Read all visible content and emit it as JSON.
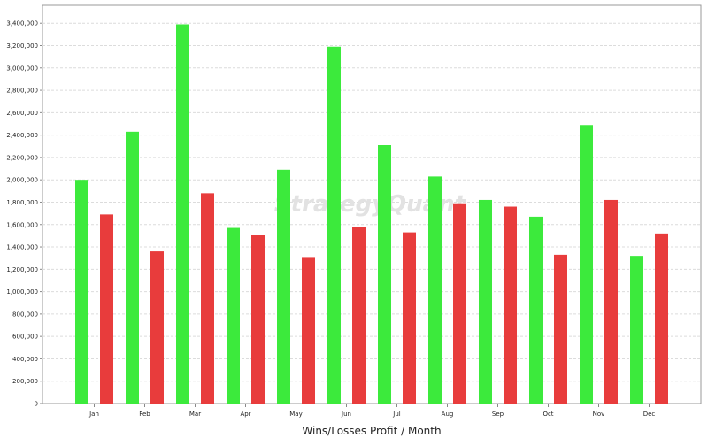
{
  "chart_data": {
    "type": "bar",
    "title": "",
    "xlabel": "Wins/Losses Profit / Month",
    "ylabel": "",
    "categories": [
      "Jan",
      "Feb",
      "Mar",
      "Apr",
      "May",
      "Jun",
      "Jul",
      "Aug",
      "Sep",
      "Oct",
      "Nov",
      "Dec"
    ],
    "series": [
      {
        "color": "#3cea3c",
        "values": [
          2000000,
          2430000,
          3390000,
          1570000,
          2090000,
          3190000,
          2310000,
          2030000,
          1820000,
          1670000,
          2490000,
          1320000
        ]
      },
      {
        "color": "#e83c3c",
        "values": [
          1690000,
          1360000,
          1880000,
          1510000,
          1310000,
          1580000,
          1530000,
          1790000,
          1760000,
          1330000,
          1820000,
          1520000
        ]
      }
    ],
    "ylim": [
      0,
      3560000
    ],
    "yticks": [
      0,
      200000,
      400000,
      600000,
      800000,
      1000000,
      1200000,
      1400000,
      1600000,
      1800000,
      2000000,
      2200000,
      2400000,
      2600000,
      2800000,
      3000000,
      3200000,
      3400000
    ],
    "ytick_labels": [
      "0",
      "200,000",
      "400,000",
      "600,000",
      "800,000",
      "1,000,000",
      "1,200,000",
      "1,400,000",
      "1,600,000",
      "1,800,000",
      "2,000,000",
      "2,200,000",
      "2,400,000",
      "2,600,000",
      "2,800,000",
      "3,000,000",
      "3,200,000",
      "3,400,000"
    ],
    "grid": true,
    "legend": "none"
  },
  "watermark": "StrategyQuant"
}
